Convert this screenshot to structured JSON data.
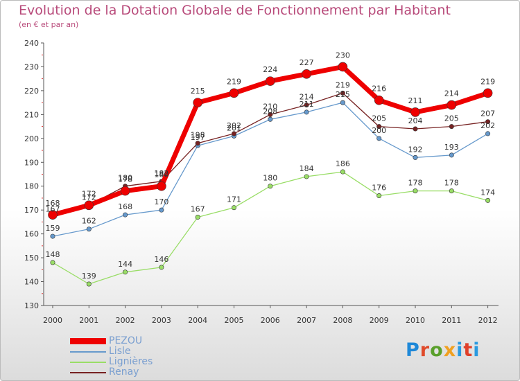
{
  "header": {
    "title": "Evolution de la Dotation Globale de Fonctionnement par Habitant",
    "subtitle": "(en € et par an)"
  },
  "chart_data": {
    "type": "line",
    "x": [
      "2000",
      "2001",
      "2002",
      "2003",
      "2004",
      "2005",
      "2006",
      "2007",
      "2008",
      "2009",
      "2010",
      "2011",
      "2012"
    ],
    "ylim": [
      130,
      240
    ],
    "yticks": [
      130,
      140,
      150,
      160,
      170,
      180,
      190,
      200,
      210,
      220,
      230,
      240
    ],
    "grid": false,
    "legend_position": "bottom-left",
    "series": [
      {
        "name": "Lignières",
        "color": "#99dd66",
        "values": [
          148,
          139,
          144,
          146,
          167,
          171,
          180,
          184,
          186,
          176,
          178,
          178,
          174
        ]
      },
      {
        "name": "Lisle",
        "color": "#6699cc",
        "values": [
          159,
          162,
          168,
          170,
          197,
          201,
          208,
          211,
          215,
          200,
          192,
          193,
          202
        ]
      },
      {
        "name": "Renay",
        "color": "#772222",
        "values": [
          167,
          172,
          180,
          182,
          198,
          202,
          210,
          214,
          219,
          205,
          204,
          205,
          207
        ]
      },
      {
        "name": "PEZOU",
        "color": "#ee0000",
        "values": [
          168,
          172,
          178,
          180,
          215,
          219,
          224,
          227,
          230,
          216,
          211,
          214,
          219
        ]
      }
    ]
  },
  "legend": {
    "items": [
      {
        "label": "PEZOU",
        "color": "#ee0000"
      },
      {
        "label": "Lisle",
        "color": "#6699cc"
      },
      {
        "label": "Lignières",
        "color": "#99dd66"
      },
      {
        "label": "Renay",
        "color": "#772222"
      }
    ]
  },
  "logo": {
    "text": "Proxiti",
    "colors": [
      "#1e88d8",
      "#e04a2a",
      "#5aa02c",
      "#f0a020",
      "#2a9ae0",
      "#e0402a",
      "#2a9ae0"
    ]
  }
}
